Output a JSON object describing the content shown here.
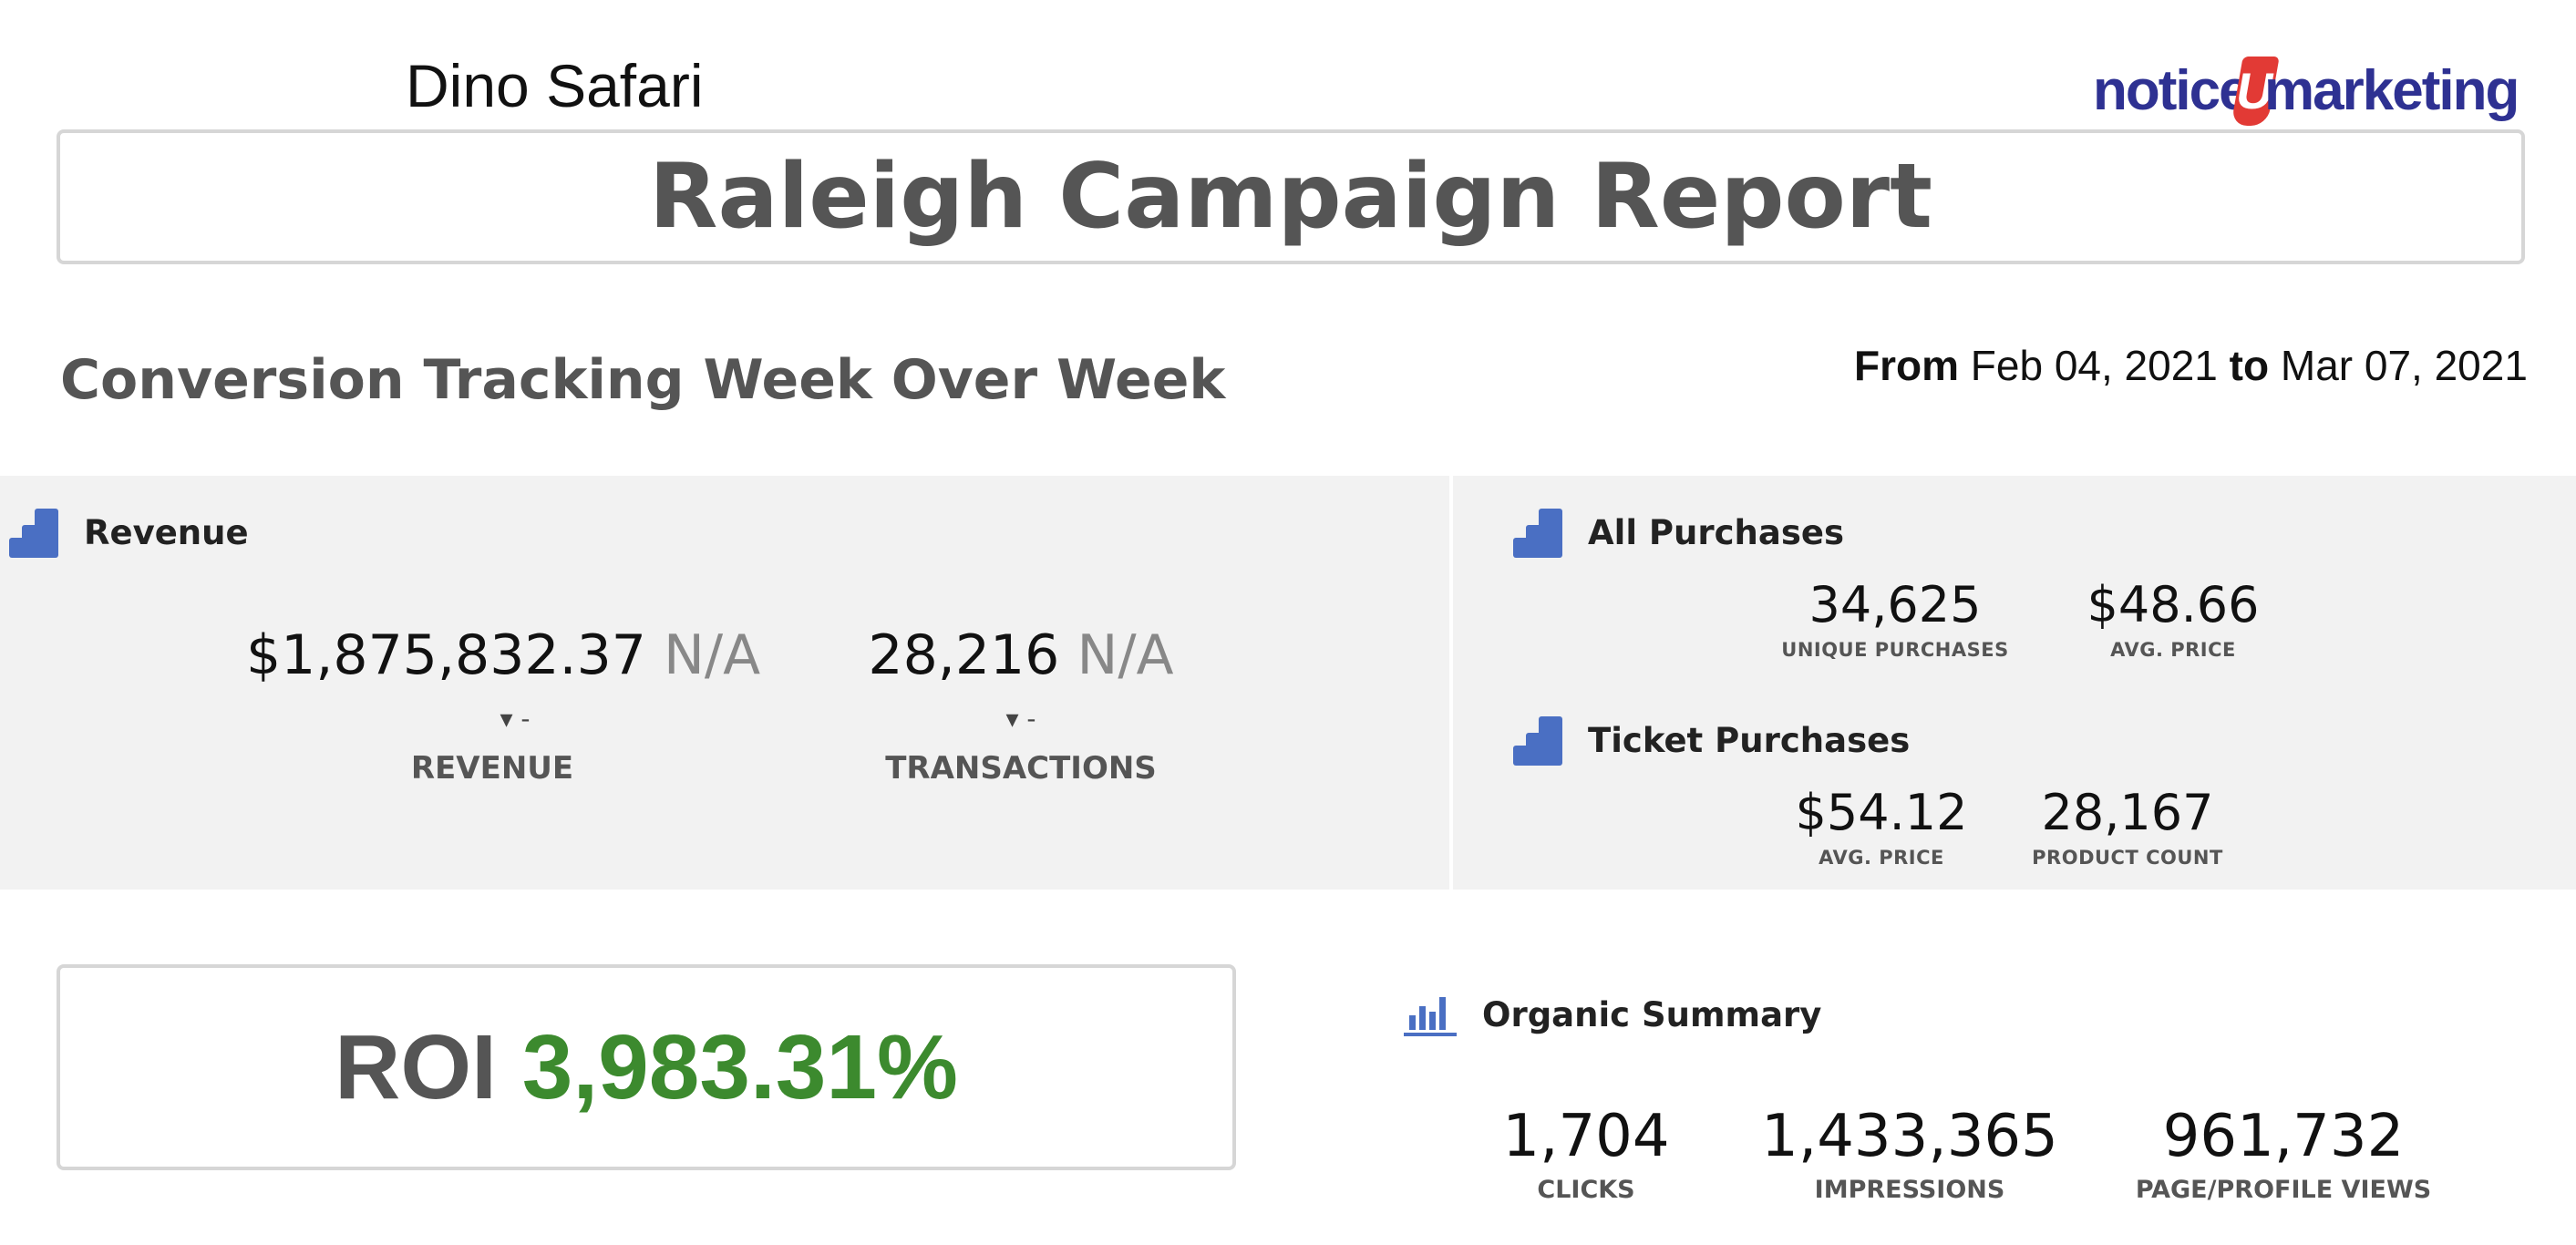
{
  "header": {
    "client_name": "Dino Safari",
    "logo": {
      "part1": "notice",
      "mark": "U",
      "part2": "marketing",
      "brand_color": "#2e3192",
      "mark_color": "#e23a35"
    },
    "report_title": "Raleigh Campaign Report"
  },
  "section": {
    "title": "Conversion Tracking Week Over Week",
    "date_range": {
      "from_label": "From",
      "from": "Feb 04, 2021",
      "to_label": "to",
      "to": "Mar 07, 2021"
    }
  },
  "revenue_card": {
    "title": "Revenue",
    "icon": "bar-steps-icon",
    "metrics": [
      {
        "value": "$1,875,832.37",
        "compare": "N/A",
        "delta": "-",
        "label": "REVENUE"
      },
      {
        "value": "28,216",
        "compare": "N/A",
        "delta": "-",
        "label": "TRANSACTIONS"
      }
    ]
  },
  "all_purchases": {
    "title": "All Purchases",
    "metrics": [
      {
        "value": "34,625",
        "label": "UNIQUE PURCHASES"
      },
      {
        "value": "$48.66",
        "label": "AVG. PRICE"
      }
    ]
  },
  "ticket_purchases": {
    "title": "Ticket Purchases",
    "metrics": [
      {
        "value": "$54.12",
        "label": "AVG. PRICE"
      },
      {
        "value": "28,167",
        "label": "PRODUCT COUNT"
      }
    ]
  },
  "roi": {
    "label": "ROI",
    "value": "3,983.31%",
    "value_color": "#3c8a2e"
  },
  "organic": {
    "title": "Organic Summary",
    "icon": "bar-chart-icon",
    "metrics": [
      {
        "value": "1,704",
        "label": "CLICKS"
      },
      {
        "value": "1,433,365",
        "label": "IMPRESSIONS"
      },
      {
        "value": "961,732",
        "label": "PAGE/PROFILE VIEWS"
      }
    ]
  },
  "colors": {
    "accent_icon": "#4a6fc3",
    "panel_bg": "#f2f2f2",
    "border": "#d6d6d6"
  }
}
